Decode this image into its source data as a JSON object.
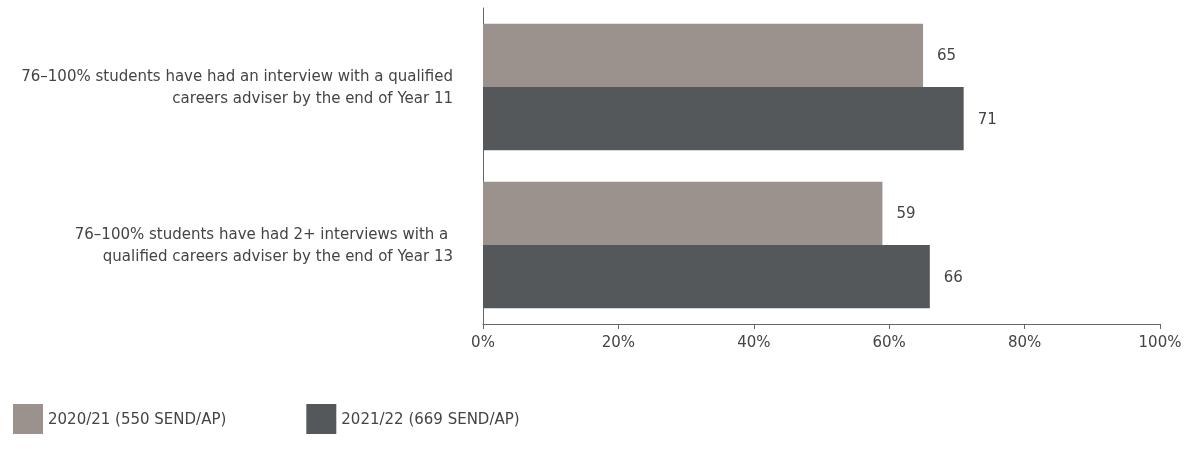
{
  "chart_data": {
    "type": "bar",
    "orientation": "horizontal",
    "categories": [
      "76–100% students have had an interview with a qualified careers adviser by the end of Year 11",
      "76–100% students have had 2+ interviews with a qualified careers adviser by the end of Year 13"
    ],
    "series": [
      {
        "name": "2020/21 (550 SEND/AP)",
        "color": "#9b928d",
        "values": [
          65,
          59
        ]
      },
      {
        "name": "2021/22 (669 SEND/AP)",
        "color": "#54585b",
        "values": [
          71,
          66
        ]
      }
    ],
    "xlim": [
      0,
      100
    ],
    "xticks": [
      {
        "value": 0,
        "label": "0%"
      },
      {
        "value": 20,
        "label": "20%"
      },
      {
        "value": 40,
        "label": "40%"
      },
      {
        "value": 60,
        "label": "60%"
      },
      {
        "value": 80,
        "label": "80%"
      },
      {
        "value": 100,
        "label": "100%"
      }
    ],
    "data_labels": true,
    "grid": false,
    "legend": "bottom left"
  }
}
